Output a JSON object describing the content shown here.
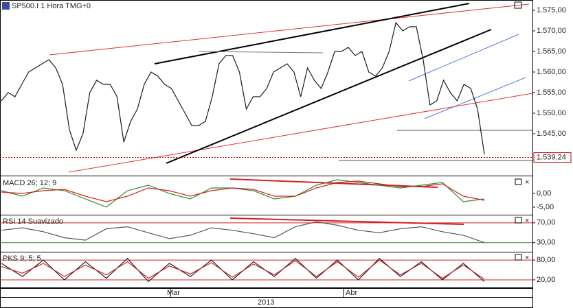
{
  "chart_data": [
    {
      "type": "line",
      "title": "SP500.I 1 Hora TMG+0",
      "ylim": [
        1535,
        1577.5
      ],
      "yticks": [
        {
          "value": 1545,
          "label": "1.545,00"
        },
        {
          "value": 1550,
          "label": "1.550,00"
        },
        {
          "value": 1555,
          "label": "1.555,00"
        },
        {
          "value": 1560,
          "label": "1.560,00"
        },
        {
          "value": 1565,
          "label": "1.565,00"
        },
        {
          "value": 1570,
          "label": "1.570,00"
        },
        {
          "value": 1575,
          "label": "1.575,00"
        }
      ],
      "grid": false,
      "last_price": {
        "value": 1539.24,
        "label": "1.539,24"
      },
      "series": [
        {
          "color": "#1a1a1a",
          "values": [
            1553,
            1555,
            1554,
            1557,
            1560,
            1561,
            1562,
            1563,
            1561,
            1557,
            1546,
            1541,
            1545,
            1555,
            1558,
            1557,
            1557,
            1554,
            1543,
            1548,
            1551,
            1557,
            1560,
            1559,
            1557,
            1556,
            1553,
            1550,
            1547,
            1547,
            1548,
            1554,
            1562,
            1564,
            1564,
            1560,
            1551,
            1554,
            1554,
            1556,
            1560,
            1561,
            1562,
            1560,
            1554,
            1561,
            1558,
            1556,
            1560,
            1565,
            1565,
            1566,
            1564,
            1565,
            1560,
            1559,
            1561,
            1565,
            1572,
            1570,
            1571,
            1571,
            1563,
            1552,
            1553,
            1558,
            1555,
            1553,
            1557,
            1556,
            1551,
            1540
          ]
        }
      ]
    },
    {
      "type": "line",
      "title": "MACD 26; 12; 9",
      "ylim": [
        -7.5,
        6
      ],
      "yticks": [
        {
          "value": -5,
          "label": "-5,00"
        },
        {
          "value": 0,
          "label": "0,00"
        }
      ],
      "grid": false,
      "series": [
        {
          "color": "#2e8b2e",
          "values": [
            1,
            -1,
            2,
            1,
            -2,
            -5,
            1,
            3,
            0,
            -2,
            2,
            2,
            1,
            -2,
            -1,
            3,
            5,
            4,
            3,
            2,
            3,
            4,
            -3,
            -2
          ]
        },
        {
          "color": "#d42020",
          "values": [
            0.5,
            0,
            1,
            1.5,
            -1,
            -3,
            -1,
            2,
            1,
            -1,
            1,
            2,
            1.5,
            -1,
            -1,
            2,
            4,
            4.5,
            3.5,
            2.5,
            2.5,
            3.5,
            -1,
            -2.5
          ]
        }
      ]
    },
    {
      "type": "line",
      "title": "RSI 14 Suavizado",
      "ylim": [
        13,
        85
      ],
      "yticks": [
        {
          "value": 30,
          "label": "30,00"
        },
        {
          "value": 70,
          "label": "70,00"
        }
      ],
      "grid": true,
      "grid_colors": [
        "#2e8b2e",
        "#d42020"
      ],
      "series": [
        {
          "color": "#555555",
          "values": [
            55,
            60,
            52,
            40,
            35,
            58,
            62,
            50,
            38,
            45,
            60,
            55,
            48,
            40,
            62,
            72,
            65,
            55,
            50,
            58,
            62,
            52,
            45,
            30
          ]
        }
      ]
    },
    {
      "type": "line",
      "title": "PKS 9; 5; 5",
      "ylim": [
        -5,
        103
      ],
      "yticks": [
        {
          "value": 20,
          "label": "20,00"
        },
        {
          "value": 80,
          "label": "80,00"
        }
      ],
      "grid": true,
      "grid_colors": [
        "#d42020",
        "#d42020"
      ],
      "series": [
        {
          "color": "#222222",
          "values": [
            70,
            30,
            80,
            20,
            75,
            25,
            85,
            15,
            70,
            30,
            80,
            20,
            75,
            30,
            85,
            25,
            80,
            20,
            85,
            30,
            75,
            20,
            70,
            15
          ]
        },
        {
          "color": "#d42020",
          "values": [
            60,
            40,
            70,
            30,
            65,
            35,
            75,
            25,
            62,
            38,
            72,
            28,
            68,
            35,
            78,
            30,
            75,
            28,
            80,
            35,
            70,
            25,
            65,
            22
          ]
        }
      ]
    }
  ],
  "time_axis": {
    "labels": [
      "Mar",
      "Abr"
    ],
    "year": "2013"
  }
}
